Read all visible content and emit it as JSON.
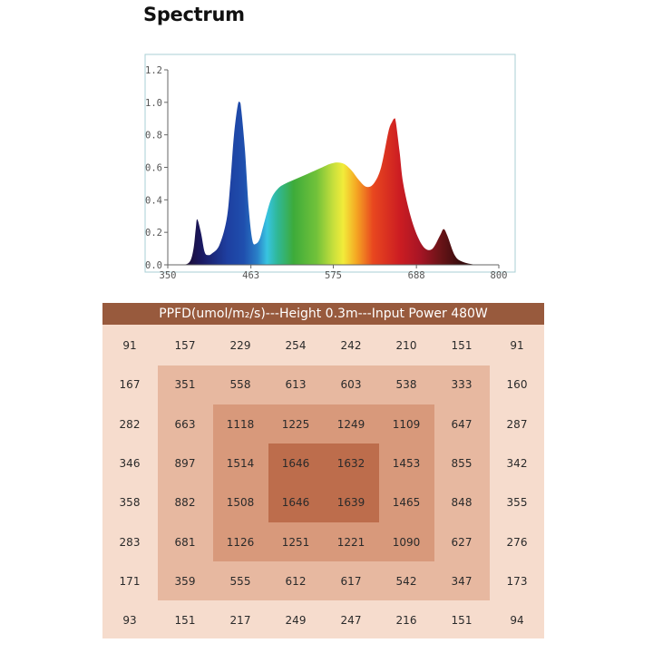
{
  "chart_data": [
    {
      "type": "area",
      "title": "Spectrum",
      "xlabel": "",
      "ylabel": "",
      "xlim": [
        350,
        800
      ],
      "ylim": [
        0,
        1.2
      ],
      "xticks": [
        "350",
        "463",
        "575",
        "688",
        "800"
      ],
      "yticks": [
        "0.0",
        "0.2",
        "0.4",
        "0.6",
        "0.8",
        "1.0",
        "1.2"
      ],
      "grid": false,
      "fill": "visible-spectrum gradient",
      "x": [
        350,
        370,
        380,
        385,
        388,
        390,
        395,
        400,
        405,
        410,
        420,
        430,
        435,
        440,
        445,
        448,
        450,
        455,
        460,
        465,
        470,
        475,
        480,
        490,
        500,
        510,
        520,
        530,
        540,
        550,
        560,
        570,
        580,
        590,
        600,
        610,
        620,
        630,
        640,
        650,
        655,
        658,
        660,
        665,
        670,
        680,
        690,
        700,
        710,
        720,
        725,
        730,
        740,
        750,
        770,
        800
      ],
      "y": [
        0.0,
        0.0,
        0.02,
        0.1,
        0.22,
        0.28,
        0.2,
        0.08,
        0.06,
        0.07,
        0.12,
        0.28,
        0.5,
        0.8,
        0.98,
        1.0,
        0.95,
        0.7,
        0.35,
        0.15,
        0.13,
        0.16,
        0.24,
        0.4,
        0.47,
        0.5,
        0.52,
        0.54,
        0.56,
        0.58,
        0.6,
        0.62,
        0.63,
        0.62,
        0.58,
        0.52,
        0.48,
        0.5,
        0.6,
        0.82,
        0.88,
        0.9,
        0.88,
        0.7,
        0.5,
        0.3,
        0.17,
        0.1,
        0.1,
        0.18,
        0.22,
        0.18,
        0.06,
        0.02,
        0.0,
        0.0
      ]
    },
    {
      "type": "table",
      "title": "PPFD(umol/m₂/s)---Height 0.3m---Input Power  480W",
      "rows": [
        [
          91,
          157,
          229,
          254,
          242,
          210,
          151,
          91
        ],
        [
          167,
          351,
          558,
          613,
          603,
          538,
          333,
          160
        ],
        [
          282,
          663,
          1118,
          1225,
          1249,
          1109,
          647,
          287
        ],
        [
          346,
          897,
          1514,
          1646,
          1632,
          1453,
          855,
          342
        ],
        [
          358,
          882,
          1508,
          1646,
          1639,
          1465,
          848,
          355
        ],
        [
          283,
          681,
          1126,
          1251,
          1221,
          1090,
          627,
          276
        ],
        [
          171,
          359,
          555,
          612,
          617,
          542,
          347,
          173
        ],
        [
          93,
          151,
          217,
          249,
          247,
          216,
          151,
          94
        ]
      ],
      "ring_colors": [
        "#f6dccd",
        "#e7b8a0",
        "#d8997b",
        "#bd6d4c"
      ]
    }
  ]
}
